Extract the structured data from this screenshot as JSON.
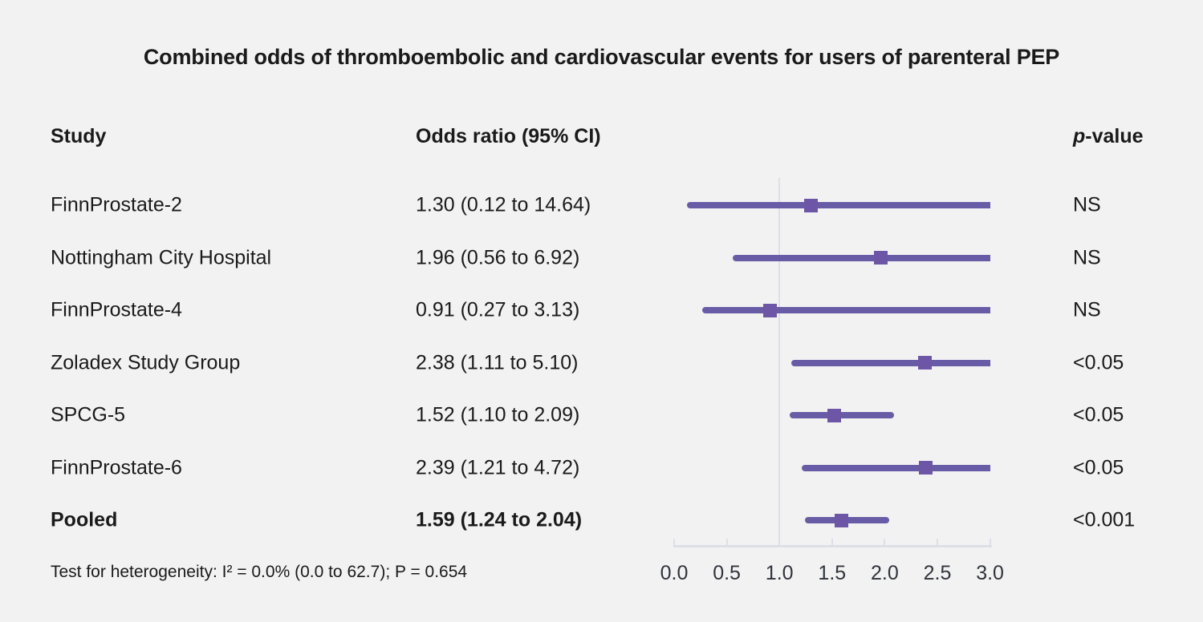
{
  "title": "Combined odds of thromboembolic and cardiovascular events for users of parenteral PEP",
  "columns": {
    "study": "Study",
    "odds_ratio": "Odds ratio (95% CI)",
    "p_value_italic": "p",
    "p_value_rest": "-value"
  },
  "footer": {
    "heterogeneity": "Test for heterogeneity: I² = 0.0% (0.0 to 62.7); P = 0.654"
  },
  "colors": {
    "background": "#f2f2f3",
    "ci_line": "#695ca7",
    "marker": "#6e56a6",
    "reference_line": "#dcdfe4",
    "axis": "#dce0e6",
    "text": "#1a1a1a",
    "tick_text": "#30343a"
  },
  "chart_data": {
    "type": "forest",
    "title": "Combined odds of thromboembolic and cardiovascular events for users of parenteral PEP",
    "xlabel": "Odds ratio (95% CI)",
    "x_axis": {
      "range": [
        0.0,
        3.0
      ],
      "ticks": [
        0.0,
        0.5,
        1.0,
        1.5,
        2.0,
        2.5,
        3.0
      ],
      "tick_labels": [
        "0.0",
        "0.5",
        "1.0",
        "1.5",
        "2.0",
        "2.5",
        "3.0"
      ],
      "reference_line": 1.0,
      "grid": false
    },
    "rows": [
      {
        "study": "FinnProstate-2",
        "or_label": "1.30 (0.12 to 14.64)",
        "estimate": 1.3,
        "ci_low": 0.12,
        "ci_high": 14.64,
        "p": "NS",
        "bold": false
      },
      {
        "study": "Nottingham City Hospital",
        "or_label": "1.96 (0.56 to 6.92)",
        "estimate": 1.96,
        "ci_low": 0.56,
        "ci_high": 6.92,
        "p": "NS",
        "bold": false
      },
      {
        "study": "FinnProstate-4",
        "or_label": "0.91 (0.27 to 3.13)",
        "estimate": 0.91,
        "ci_low": 0.27,
        "ci_high": 3.13,
        "p": "NS",
        "bold": false
      },
      {
        "study": "Zoladex Study Group",
        "or_label": "2.38 (1.11 to 5.10)",
        "estimate": 2.38,
        "ci_low": 1.11,
        "ci_high": 5.1,
        "p": "<0.05",
        "bold": false
      },
      {
        "study": "SPCG-5",
        "or_label": "1.52 (1.10 to 2.09)",
        "estimate": 1.52,
        "ci_low": 1.1,
        "ci_high": 2.09,
        "p": "<0.05",
        "bold": false
      },
      {
        "study": "FinnProstate-6",
        "or_label": "2.39 (1.21 to 4.72)",
        "estimate": 2.39,
        "ci_low": 1.21,
        "ci_high": 4.72,
        "p": "<0.05",
        "bold": false
      },
      {
        "study": "Pooled",
        "or_label": "1.59 (1.24 to 2.04)",
        "estimate": 1.59,
        "ci_low": 1.24,
        "ci_high": 2.04,
        "p": "<0.001",
        "bold": true
      }
    ]
  }
}
